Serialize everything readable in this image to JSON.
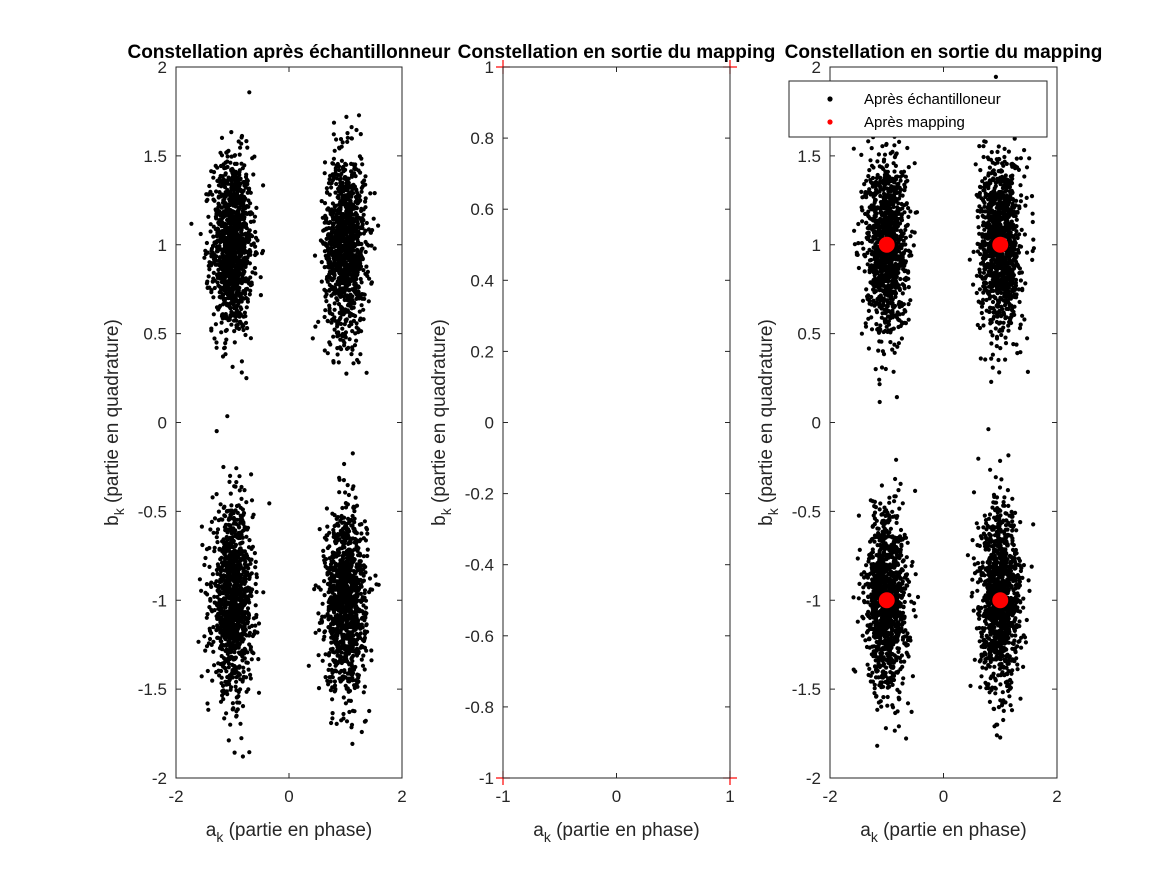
{
  "colors": {
    "points": "#000000",
    "mapping": "#ff0000",
    "axis": "#262626",
    "background": "#ffffff"
  },
  "chart_data": [
    {
      "type": "scatter",
      "title": "Constellation après échantillonneur",
      "xlabel": "a",
      "xlabel_subscript": "k",
      "xlabel_rest": " (partie en phase)",
      "ylabel": "b",
      "ylabel_subscript": "k",
      "ylabel_rest": " (partie en quadrature)",
      "xlim": [
        -2,
        2
      ],
      "ylim": [
        -2,
        2
      ],
      "xticks": [
        "-2",
        "0",
        "2"
      ],
      "yticks": [
        "-2",
        "-1.5",
        "-1",
        "-0.5",
        "0",
        "0.5",
        "1",
        "1.5",
        "2"
      ],
      "grid": false,
      "series": [
        {
          "marker": "dot",
          "color": "#000000",
          "clusters": [
            {
              "center": [
                -1,
                1
              ],
              "std": [
                0.18,
                0.25
              ],
              "count": 1150
            },
            {
              "center": [
                1,
                1
              ],
              "std": [
                0.18,
                0.25
              ],
              "count": 1150
            },
            {
              "center": [
                -1,
                -1
              ],
              "std": [
                0.18,
                0.25
              ],
              "count": 1150
            },
            {
              "center": [
                1,
                -1
              ],
              "std": [
                0.18,
                0.25
              ],
              "count": 1150
            }
          ]
        }
      ]
    },
    {
      "type": "scatter",
      "title": "Constellation en sortie du mapping",
      "xlabel": "a",
      "xlabel_subscript": "k",
      "xlabel_rest": " (partie en phase)",
      "ylabel": "b",
      "ylabel_subscript": "k",
      "ylabel_rest": " (partie en quadrature)",
      "xlim": [
        -1,
        1
      ],
      "ylim": [
        -1,
        1
      ],
      "xticks": [
        "-1",
        "0",
        "1"
      ],
      "yticks": [
        "-1",
        "-0.8",
        "-0.6",
        "-0.4",
        "-0.2",
        "0",
        "0.2",
        "0.4",
        "0.6",
        "0.8",
        "1"
      ],
      "grid": false,
      "series": [
        {
          "marker": "plus",
          "color": "#ff0000",
          "points": [
            [
              -1,
              1
            ],
            [
              1,
              1
            ],
            [
              -1,
              -1
            ],
            [
              1,
              -1
            ]
          ]
        }
      ]
    },
    {
      "type": "scatter",
      "title": "Constellation en sortie du mapping",
      "xlabel": "a",
      "xlabel_subscript": "k",
      "xlabel_rest": " (partie en phase)",
      "ylabel": "b",
      "ylabel_subscript": "k",
      "ylabel_rest": " (partie en quadrature)",
      "xlim": [
        -2,
        2
      ],
      "ylim": [
        -2,
        2
      ],
      "xticks": [
        "-2",
        "0",
        "2"
      ],
      "yticks": [
        "-2",
        "-1.5",
        "-1",
        "-0.5",
        "0",
        "0.5",
        "1",
        "1.5",
        "2"
      ],
      "grid": false,
      "legend": {
        "placement": "top-right",
        "entries": [
          "Après échantilloneur",
          "Après mapping"
        ]
      },
      "series": [
        {
          "name": "Après échantilloneur",
          "marker": "dot",
          "color": "#000000",
          "clusters": [
            {
              "center": [
                -1,
                1
              ],
              "std": [
                0.18,
                0.25
              ],
              "count": 1150
            },
            {
              "center": [
                1,
                1
              ],
              "std": [
                0.18,
                0.25
              ],
              "count": 1150
            },
            {
              "center": [
                -1,
                -1
              ],
              "std": [
                0.18,
                0.25
              ],
              "count": 1150
            },
            {
              "center": [
                1,
                -1
              ],
              "std": [
                0.18,
                0.25
              ],
              "count": 1150
            }
          ]
        },
        {
          "name": "Après mapping",
          "marker": "big-dot",
          "color": "#ff0000",
          "points": [
            [
              -1,
              1
            ],
            [
              1,
              1
            ],
            [
              -1,
              -1
            ],
            [
              1,
              -1
            ]
          ]
        }
      ]
    }
  ]
}
